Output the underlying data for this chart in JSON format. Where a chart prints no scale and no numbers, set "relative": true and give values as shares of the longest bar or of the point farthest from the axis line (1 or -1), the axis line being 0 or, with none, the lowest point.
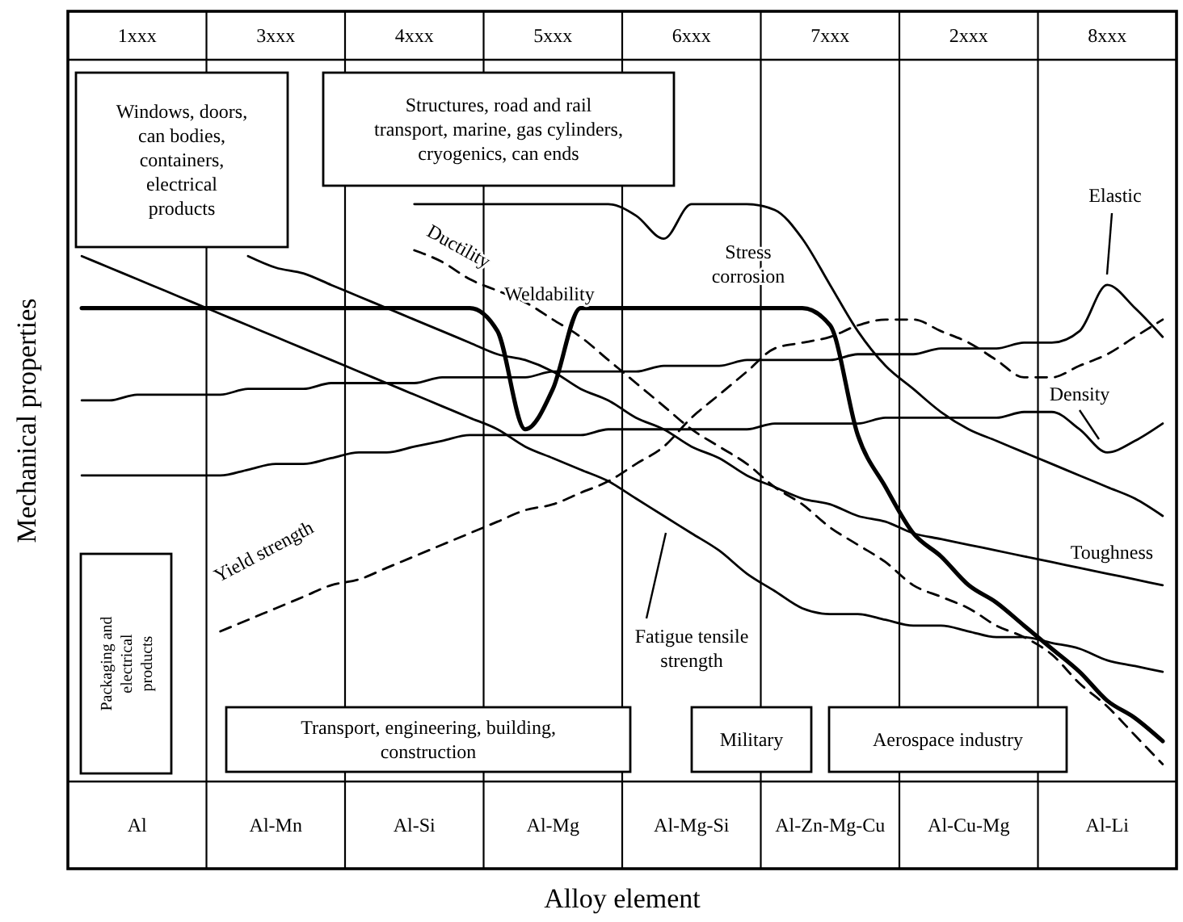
{
  "chart_data": {
    "type": "line",
    "relative": true,
    "xlabel": "Alloy element",
    "ylabel": "Mechanical properties",
    "categories": [
      null,
      null,
      "Al",
      null,
      null,
      null,
      null,
      "Al-Mn",
      null,
      null,
      null,
      null,
      "Al-Si",
      null,
      null,
      null,
      null,
      "Al-Mg",
      null,
      null,
      null,
      null,
      "Al-Mg-Si",
      null,
      null,
      null,
      null,
      "Al-Zn-Mg-Cu",
      null,
      null,
      null,
      null,
      "Al-Cu-Mg",
      null,
      null,
      null,
      null,
      "Al-Li",
      null,
      null
    ],
    "grid": false,
    "legend": false,
    "series": [
      {
        "name": "Stress corrosion",
        "color": "#000000",
        "line_style": "solid",
        "values": [
          null,
          null,
          null,
          null,
          null,
          null,
          null,
          null,
          null,
          null,
          null,
          null,
          1,
          1,
          1,
          1,
          1,
          1,
          1,
          1,
          0.98,
          0.94,
          1,
          1,
          1,
          0.99,
          0.94,
          0.86,
          0.78,
          0.72,
          0.68,
          0.64,
          0.61,
          0.59,
          0.57,
          0.55,
          0.53,
          0.51,
          0.49,
          0.46
        ]
      },
      {
        "name": "Weldability",
        "color": "#000000",
        "line_style": "solid",
        "values": [
          0.82,
          0.82,
          0.82,
          0.82,
          0.82,
          0.82,
          0.82,
          0.82,
          0.82,
          0.82,
          0.82,
          0.82,
          0.82,
          0.82,
          0.82,
          0.78,
          0.61,
          0.68,
          0.82,
          0.82,
          0.82,
          0.82,
          0.82,
          0.82,
          0.82,
          0.82,
          0.82,
          0.79,
          0.6,
          0.51,
          0.43,
          0.39,
          0.34,
          0.31,
          0.27,
          0.23,
          0.19,
          0.14,
          0.11,
          0.07
        ]
      },
      {
        "name": "Ductility",
        "color": "#000000",
        "line_style": "dashed",
        "values": [
          null,
          null,
          null,
          null,
          null,
          null,
          null,
          null,
          null,
          null,
          null,
          null,
          0.92,
          0.9,
          0.87,
          0.85,
          0.83,
          0.8,
          0.77,
          0.73,
          0.69,
          0.65,
          0.61,
          0.58,
          0.55,
          0.51,
          0.48,
          0.44,
          0.41,
          0.38,
          0.34,
          0.32,
          0.3,
          0.27,
          0.25,
          0.22,
          0.17,
          0.13,
          0.08,
          0.03
        ]
      },
      {
        "name": "Yield strength",
        "color": "#000000",
        "line_style": "dashed",
        "values": [
          null,
          null,
          null,
          null,
          null,
          0.26,
          0.28,
          0.3,
          0.32,
          0.34,
          0.35,
          0.37,
          0.39,
          0.41,
          0.43,
          0.45,
          0.47,
          0.48,
          0.5,
          0.52,
          0.55,
          0.58,
          0.63,
          0.67,
          0.71,
          0.75,
          0.76,
          0.77,
          0.79,
          0.8,
          0.8,
          0.78,
          0.76,
          0.73,
          0.7,
          0.7,
          0.72,
          0.74,
          0.77,
          0.8
        ]
      },
      {
        "name": "Toughness",
        "color": "#000000",
        "line_style": "solid",
        "values": [
          null,
          null,
          null,
          null,
          null,
          null,
          0.91,
          0.89,
          0.88,
          0.86,
          0.84,
          0.82,
          0.8,
          0.78,
          0.76,
          0.74,
          0.73,
          0.71,
          0.68,
          0.66,
          0.63,
          0.61,
          0.58,
          0.56,
          0.53,
          0.51,
          0.49,
          0.48,
          0.46,
          0.45,
          0.43,
          0.42,
          0.41,
          0.4,
          0.39,
          0.38,
          0.37,
          0.36,
          0.35,
          0.34
        ]
      },
      {
        "name": "Fatigue tensile strength",
        "color": "#000000",
        "line_style": "solid",
        "values": [
          0.91,
          0.89,
          0.87,
          0.85,
          0.83,
          0.81,
          0.79,
          0.77,
          0.75,
          0.73,
          0.71,
          0.69,
          0.67,
          0.65,
          0.63,
          0.61,
          0.58,
          0.56,
          0.54,
          0.52,
          0.49,
          0.46,
          0.43,
          0.4,
          0.36,
          0.33,
          0.3,
          0.29,
          0.29,
          0.28,
          0.27,
          0.27,
          0.26,
          0.25,
          0.25,
          0.24,
          0.23,
          0.21,
          0.2,
          0.19
        ]
      },
      {
        "name": "Elastic",
        "color": "#000000",
        "line_style": "solid",
        "values": [
          0.66,
          0.66,
          0.67,
          0.67,
          0.67,
          0.67,
          0.68,
          0.68,
          0.68,
          0.69,
          0.69,
          0.69,
          0.69,
          0.7,
          0.7,
          0.7,
          0.7,
          0.71,
          0.71,
          0.71,
          0.71,
          0.72,
          0.72,
          0.72,
          0.73,
          0.73,
          0.73,
          0.73,
          0.74,
          0.74,
          0.74,
          0.75,
          0.75,
          0.75,
          0.76,
          0.76,
          0.78,
          0.86,
          0.82,
          0.77
        ]
      },
      {
        "name": "Density",
        "color": "#000000",
        "line_style": "solid",
        "values": [
          0.53,
          0.53,
          0.53,
          0.53,
          0.53,
          0.53,
          0.54,
          0.55,
          0.55,
          0.56,
          0.57,
          0.57,
          0.58,
          0.59,
          0.6,
          0.6,
          0.6,
          0.6,
          0.6,
          0.61,
          0.61,
          0.61,
          0.61,
          0.61,
          0.61,
          0.62,
          0.62,
          0.62,
          0.62,
          0.63,
          0.63,
          0.63,
          0.63,
          0.63,
          0.64,
          0.64,
          0.61,
          0.57,
          0.59,
          0.62
        ]
      }
    ],
    "annotations": [
      "1xxx",
      "3xxx",
      "4xxx",
      "5xxx",
      "6xxx",
      "7xxx",
      "2xxx",
      "8xxx",
      "Windows, doors, can bodies, containers, electrical products",
      "Structures, road and rail transport, marine, gas cylinders, cryogenics, can ends",
      "Packaging and electrical products",
      "Transport, engineering, building, construction",
      "Military",
      "Aerospace industry"
    ]
  }
}
